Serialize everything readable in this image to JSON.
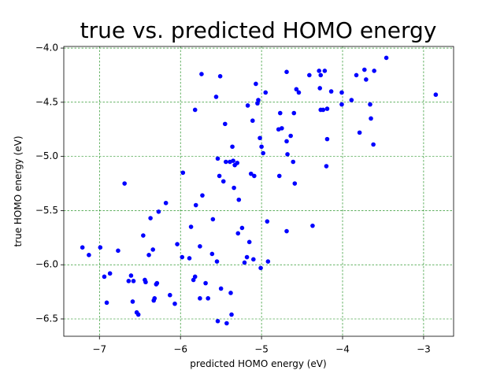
{
  "chart_data": {
    "type": "scatter",
    "title": "true vs. predicted HOMO energy",
    "xlabel": "predicted HOMO energy (eV)",
    "ylabel": "true HOMO energy (eV)",
    "color": "#0000ff",
    "grid": true,
    "grid_color": "#008000",
    "xlim": [
      -7.44,
      -2.63
    ],
    "ylim": [
      -6.66,
      -3.985
    ],
    "xticks": [
      {
        "value": -7,
        "label": "−7"
      },
      {
        "value": -6,
        "label": "−6"
      },
      {
        "value": -5,
        "label": "−5"
      },
      {
        "value": -4,
        "label": "−4"
      },
      {
        "value": -3,
        "label": "−3"
      }
    ],
    "yticks": [
      {
        "value": -6.5,
        "label": "−6.5"
      },
      {
        "value": -6.0,
        "label": "−6.0"
      },
      {
        "value": -5.5,
        "label": "−5.5"
      },
      {
        "value": -5.0,
        "label": "−5.0"
      },
      {
        "value": -4.5,
        "label": "−4.5"
      },
      {
        "value": -4.0,
        "label": "−4.0"
      }
    ],
    "x": [
      -7.21,
      -7.13,
      -6.99,
      -6.94,
      -6.91,
      -6.87,
      -6.77,
      -6.69,
      -6.64,
      -6.61,
      -6.59,
      -6.58,
      -6.54,
      -6.52,
      -6.46,
      -6.44,
      -6.43,
      -6.39,
      -6.37,
      -6.34,
      -6.33,
      -6.32,
      -6.3,
      -6.29,
      -6.27,
      -6.18,
      -6.13,
      -6.07,
      -6.04,
      -5.98,
      -5.97,
      -5.89,
      -5.87,
      -5.84,
      -5.82,
      -5.82,
      -5.81,
      -5.76,
      -5.76,
      -5.74,
      -5.73,
      -5.69,
      -5.66,
      -5.61,
      -5.6,
      -5.56,
      -5.55,
      -5.54,
      -5.54,
      -5.52,
      -5.51,
      -5.5,
      -5.47,
      -5.45,
      -5.44,
      -5.43,
      -5.39,
      -5.38,
      -5.37,
      -5.36,
      -5.35,
      -5.34,
      -5.33,
      -5.3,
      -5.29,
      -5.28,
      -5.24,
      -5.21,
      -5.18,
      -5.17,
      -5.15,
      -5.13,
      -5.11,
      -5.1,
      -5.09,
      -5.07,
      -5.05,
      -5.04,
      -5.02,
      -5.01,
      -5.0,
      -4.98,
      -4.95,
      -4.93,
      -4.92,
      -4.79,
      -4.78,
      -4.77,
      -4.75,
      -4.69,
      -4.69,
      -4.69,
      -4.68,
      -4.64,
      -4.61,
      -4.6,
      -4.59,
      -4.57,
      -4.54,
      -4.41,
      -4.37,
      -4.29,
      -4.28,
      -4.27,
      -4.27,
      -4.24,
      -4.22,
      -4.2,
      -4.19,
      -4.19,
      -4.14,
      -4.01,
      -4.01,
      -3.89,
      -3.83,
      -3.79,
      -3.73,
      -3.71,
      -3.66,
      -3.65,
      -3.62,
      -3.61,
      -3.46,
      -2.85
    ],
    "values": [
      -5.84,
      -5.91,
      -5.84,
      -6.11,
      -6.35,
      -6.08,
      -5.87,
      -5.25,
      -6.15,
      -6.1,
      -6.34,
      -6.15,
      -6.44,
      -6.46,
      -5.73,
      -6.14,
      -6.16,
      -5.91,
      -5.57,
      -5.86,
      -6.33,
      -6.31,
      -6.18,
      -6.17,
      -5.51,
      -5.43,
      -6.28,
      -6.36,
      -5.81,
      -5.93,
      -5.15,
      -5.94,
      -5.65,
      -6.14,
      -4.57,
      -6.11,
      -5.45,
      -5.83,
      -6.31,
      -4.24,
      -5.36,
      -6.17,
      -6.31,
      -5.9,
      -5.58,
      -4.45,
      -5.97,
      -6.52,
      -5.02,
      -5.18,
      -4.26,
      -6.22,
      -5.23,
      -4.7,
      -5.05,
      -6.54,
      -5.05,
      -6.26,
      -6.46,
      -4.91,
      -5.04,
      -5.29,
      -5.08,
      -5.06,
      -5.71,
      -5.4,
      -5.66,
      -5.98,
      -5.93,
      -4.53,
      -5.79,
      -5.16,
      -4.67,
      -5.95,
      -5.18,
      -4.33,
      -4.51,
      -4.48,
      -4.83,
      -6.03,
      -4.91,
      -4.97,
      -4.41,
      -5.6,
      -5.97,
      -4.75,
      -5.18,
      -4.6,
      -4.74,
      -4.86,
      -5.69,
      -4.22,
      -4.98,
      -4.81,
      -5.05,
      -4.6,
      -5.25,
      -4.38,
      -4.41,
      -4.25,
      -5.64,
      -4.21,
      -4.37,
      -4.25,
      -4.57,
      -4.57,
      -4.21,
      -5.09,
      -4.84,
      -4.56,
      -4.4,
      -4.41,
      -4.52,
      -4.48,
      -4.25,
      -4.78,
      -4.2,
      -4.29,
      -4.52,
      -4.65,
      -4.89,
      -4.21,
      -4.09,
      -4.43
    ]
  }
}
